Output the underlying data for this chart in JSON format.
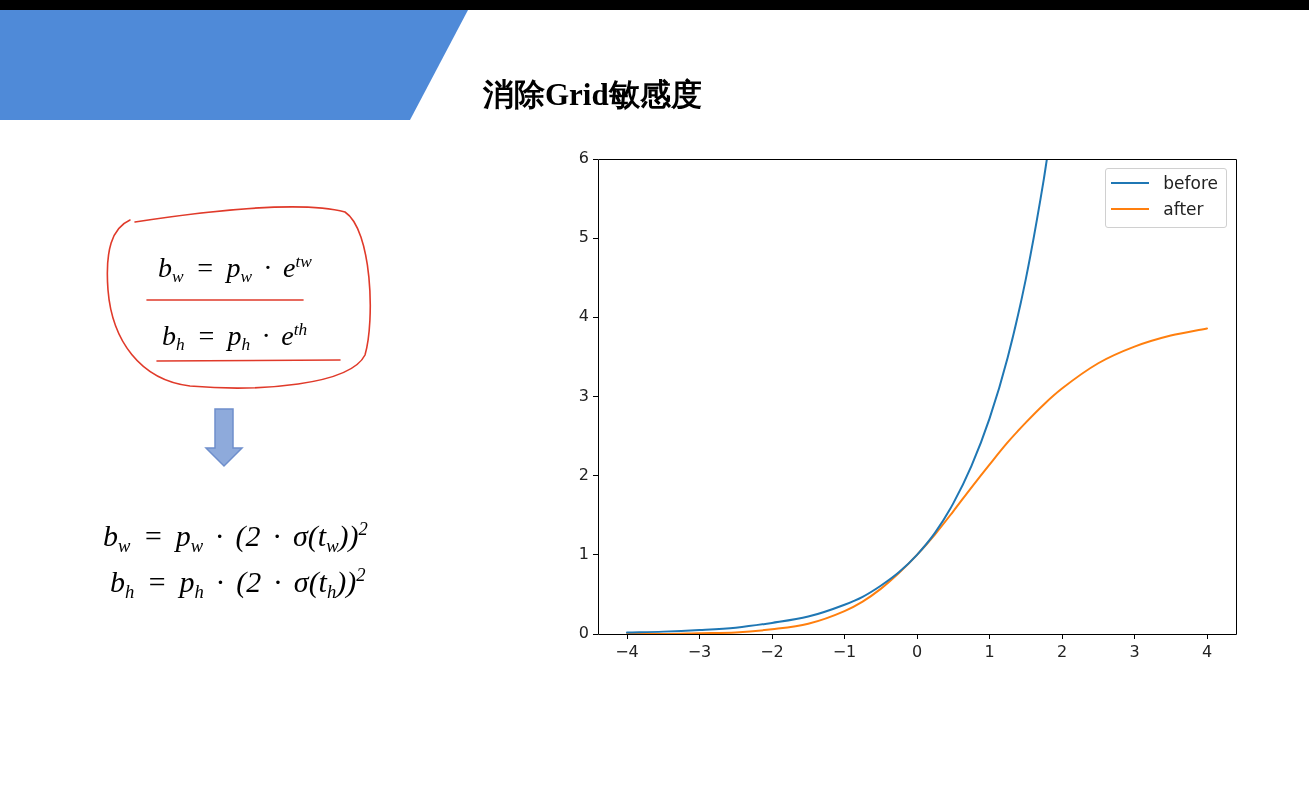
{
  "chart_data": {
    "type": "line",
    "title": "消除Grid敏感度",
    "annotations": [
      "b$_{w}$ = p$_{w}$ · e$^{tw}$",
      "b$_{h}$ = p$_{h}$ · e$^{th}$",
      "b$_{w}$ = p$_{w}$ · (2 · σ(t$_{w}$))$^{2}$",
      "b$_{h}$ = p$_{h}$ · (2 · σ(t$_{h}$))$^{2}$"
    ],
    "xlim": [
      -4.4,
      4.4
    ],
    "xticks": [
      {
        "value": -4,
        "label": "−4"
      },
      {
        "value": -3,
        "label": "−3"
      },
      {
        "value": -2,
        "label": "−2"
      },
      {
        "value": -1,
        "label": "−1"
      },
      0,
      1,
      2,
      3,
      4
    ],
    "ylim": [
      0,
      6
    ],
    "yticks": [
      0,
      1,
      2,
      3,
      4,
      5,
      6
    ],
    "legend": "top right",
    "series": [
      {
        "name": "before",
        "color": "#1f77b4",
        "x": [
          -4,
          -3.5,
          -3,
          -2.5,
          -2,
          -1.5,
          -1,
          -0.75,
          -0.5,
          -0.25,
          0,
          0.25,
          0.5,
          0.75,
          1,
          1.25,
          1.5,
          1.75,
          1.79
        ],
        "values": [
          0.02,
          0.03,
          0.05,
          0.08,
          0.14,
          0.22,
          0.37,
          0.47,
          0.61,
          0.78,
          1.0,
          1.28,
          1.65,
          2.12,
          2.72,
          3.49,
          4.48,
          5.75,
          5.99
        ]
      },
      {
        "name": "after",
        "color": "#ff7f0e",
        "x": [
          -4,
          -3.5,
          -3,
          -2.5,
          -2,
          -1.5,
          -1,
          -0.75,
          -0.5,
          -0.25,
          0,
          0.25,
          0.5,
          0.75,
          1,
          1.25,
          1.5,
          1.75,
          2,
          2.5,
          3,
          3.5,
          4
        ],
        "values": [
          0.0,
          0.0,
          0.01,
          0.02,
          0.06,
          0.13,
          0.29,
          0.41,
          0.57,
          0.77,
          1.0,
          1.26,
          1.55,
          1.85,
          2.14,
          2.42,
          2.67,
          2.9,
          3.1,
          3.42,
          3.63,
          3.77,
          3.86
        ]
      }
    ]
  }
}
